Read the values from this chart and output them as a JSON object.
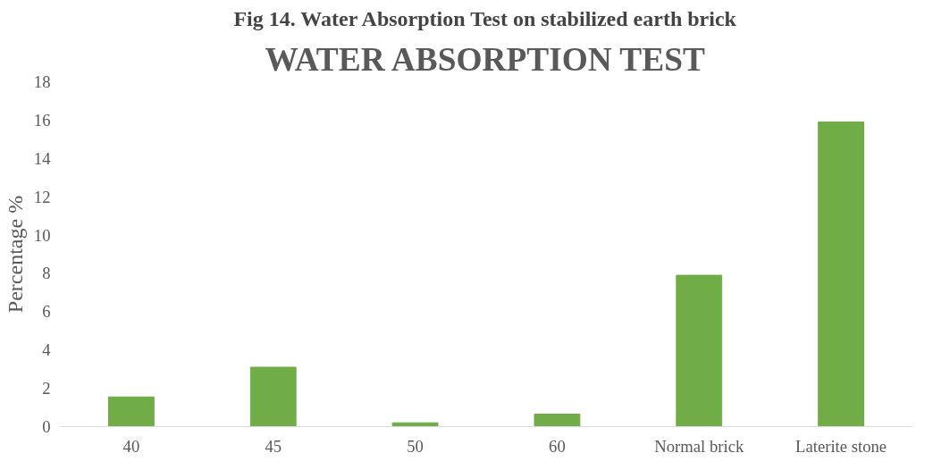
{
  "chart_data": {
    "type": "bar",
    "title": "Fig 14. Water Absorption Test on stabilized earth brick",
    "subtitle": "WATER ABSORPTION TEST",
    "ylabel": "Percentage %",
    "categories": [
      "40",
      "45",
      "50",
      "60",
      "Normal brick",
      "Laterite stone"
    ],
    "values": [
      1.55,
      3.1,
      0.2,
      0.65,
      7.9,
      15.9
    ],
    "color": "#70ad47",
    "ylim": [
      0,
      18
    ],
    "yticks": [
      0,
      2,
      4,
      6,
      8,
      10,
      12,
      14,
      16,
      18
    ],
    "grid": false
  }
}
